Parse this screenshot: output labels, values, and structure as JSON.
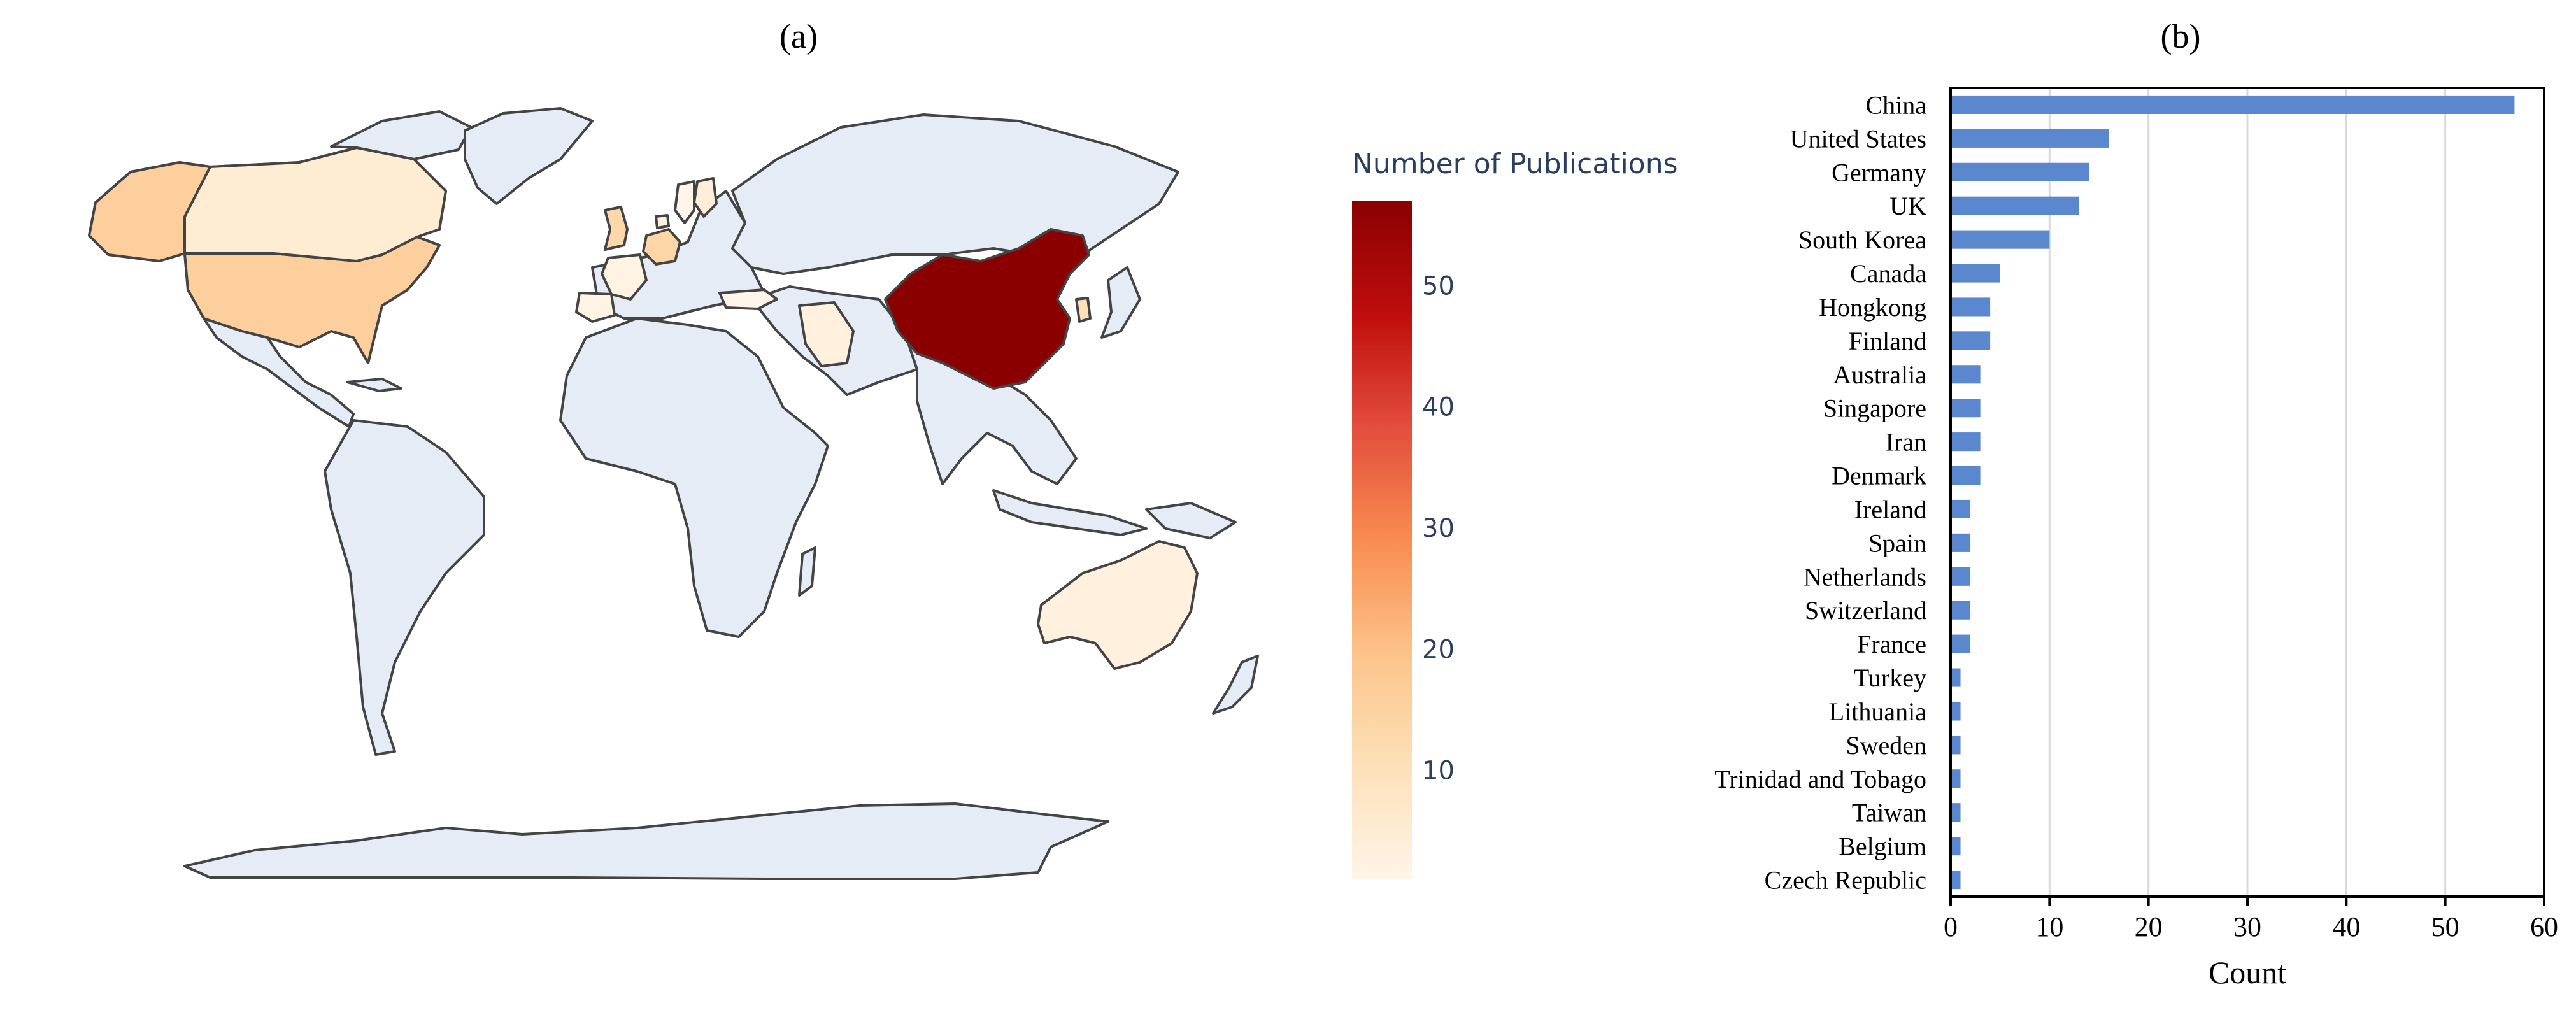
{
  "panel_a": {
    "label": "(a)",
    "colorbar": {
      "title": "Number of Publications",
      "ticks": [
        "50",
        "40",
        "30",
        "20",
        "10"
      ],
      "tick_values": [
        50,
        40,
        30,
        20,
        10
      ],
      "range": [
        1,
        57
      ],
      "colors": [
        "#fff5e8",
        "#fde0b8",
        "#fcc48a",
        "#f98c50",
        "#e24c3c",
        "#c00d0d",
        "#8a0000"
      ]
    },
    "map": {
      "land_color": "#e5ecf6",
      "border_color": "#444444",
      "countries": [
        {
          "name": "China",
          "value": 57
        },
        {
          "name": "United States",
          "value": 16
        },
        {
          "name": "Germany",
          "value": 14
        },
        {
          "name": "UK",
          "value": 13
        },
        {
          "name": "South Korea",
          "value": 10
        },
        {
          "name": "Canada",
          "value": 5
        },
        {
          "name": "Finland",
          "value": 4
        },
        {
          "name": "Australia",
          "value": 3
        },
        {
          "name": "Iran",
          "value": 3
        },
        {
          "name": "Denmark",
          "value": 3
        },
        {
          "name": "Spain",
          "value": 2
        },
        {
          "name": "France",
          "value": 2
        },
        {
          "name": "Turkey",
          "value": 1
        },
        {
          "name": "Sweden",
          "value": 1
        }
      ]
    }
  },
  "panel_b": {
    "label": "(b)",
    "bar_color": "#5b87cf"
  },
  "chart_data": {
    "type": "bar",
    "orientation": "horizontal",
    "categories": [
      "China",
      "United States",
      "Germany",
      "UK",
      "South Korea",
      "Canada",
      "Hongkong",
      "Finland",
      "Australia",
      "Singapore",
      "Iran",
      "Denmark",
      "Ireland",
      "Spain",
      "Netherlands",
      "Switzerland",
      "France",
      "Turkey",
      "Lithuania",
      "Sweden",
      "Trinidad and Tobago",
      "Taiwan",
      "Belgium",
      "Czech Republic"
    ],
    "values": [
      57,
      16,
      14,
      13,
      10,
      5,
      4,
      4,
      3,
      3,
      3,
      3,
      2,
      2,
      2,
      2,
      2,
      1,
      1,
      1,
      1,
      1,
      1,
      1
    ],
    "xlabel": "Count",
    "ylabel": "",
    "xlim": [
      0,
      60
    ],
    "xticks": [
      0,
      10,
      20,
      30,
      40,
      50,
      60
    ],
    "grid": "vertical"
  }
}
